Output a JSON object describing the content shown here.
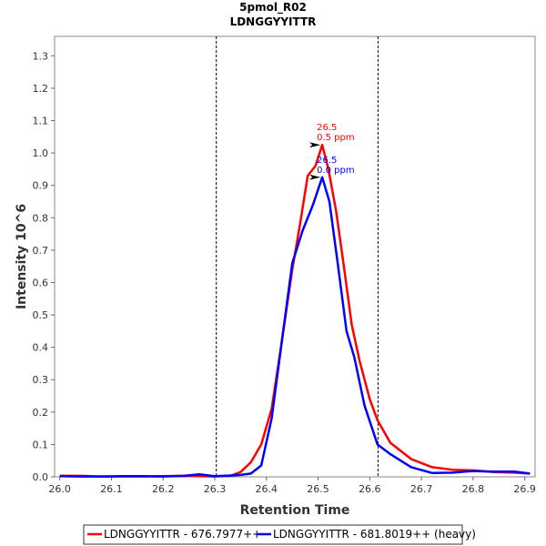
{
  "chart_data": {
    "type": "line",
    "title": "5pmol_R02",
    "subtitle": "LDNGGYYITTR",
    "xlabel": "Retention Time",
    "ylabel": "Intensity 10^6",
    "xlim": [
      25.99,
      26.92
    ],
    "ylim": [
      0,
      1.36
    ],
    "x_ticks": [
      "26.0",
      "26.1",
      "26.2",
      "26.3",
      "26.4",
      "26.5",
      "26.6",
      "26.7",
      "26.8",
      "26.9"
    ],
    "y_ticks": [
      "0.0",
      "0.1",
      "0.2",
      "0.3",
      "0.4",
      "0.5",
      "0.6",
      "0.7",
      "0.8",
      "0.9",
      "1.0",
      "1.1",
      "1.2",
      "1.3"
    ],
    "grid": false,
    "legend_position": "bottom",
    "boundaries": [
      26.303,
      26.616
    ],
    "series": [
      {
        "name": "LDNGGYYITTR - 676.7977++",
        "color": "#ff0000",
        "x": [
          26.0,
          26.04,
          26.08,
          26.12,
          26.16,
          26.2,
          26.24,
          26.27,
          26.3,
          26.33,
          26.35,
          26.37,
          26.39,
          26.41,
          26.43,
          26.45,
          26.465,
          26.48,
          26.495,
          26.508,
          26.52,
          26.535,
          26.55,
          26.565,
          26.58,
          26.6,
          26.615,
          26.64,
          26.68,
          26.72,
          26.76,
          26.8,
          26.84,
          26.88,
          26.91
        ],
        "y": [
          0.003,
          0.003,
          0.001,
          0.001,
          0.001,
          0.002,
          0.003,
          0.002,
          0.001,
          0.003,
          0.015,
          0.045,
          0.1,
          0.21,
          0.42,
          0.64,
          0.78,
          0.93,
          0.96,
          1.025,
          0.95,
          0.82,
          0.65,
          0.47,
          0.36,
          0.24,
          0.175,
          0.105,
          0.055,
          0.03,
          0.022,
          0.02,
          0.015,
          0.013,
          0.01
        ]
      },
      {
        "name": "LDNGGYYITTR - 681.8019++ (heavy)",
        "color": "#0000ff",
        "x": [
          26.0,
          26.04,
          26.08,
          26.12,
          26.16,
          26.2,
          26.24,
          26.27,
          26.3,
          26.33,
          26.35,
          26.37,
          26.39,
          26.41,
          26.43,
          26.45,
          26.47,
          26.49,
          26.508,
          26.522,
          26.538,
          26.555,
          26.57,
          26.59,
          26.615,
          26.64,
          26.68,
          26.72,
          26.76,
          26.8,
          26.84,
          26.88,
          26.91
        ],
        "y": [
          0.002,
          0.001,
          0.001,
          0.002,
          0.002,
          0.001,
          0.003,
          0.008,
          0.002,
          0.004,
          0.006,
          0.01,
          0.035,
          0.18,
          0.42,
          0.66,
          0.76,
          0.84,
          0.925,
          0.85,
          0.66,
          0.45,
          0.37,
          0.22,
          0.1,
          0.07,
          0.03,
          0.012,
          0.013,
          0.018,
          0.016,
          0.016,
          0.01
        ]
      }
    ],
    "annotations": [
      {
        "x": 26.508,
        "y": 1.025,
        "lines": [
          "26.5",
          "0.5 ppm"
        ],
        "color": "#ff0000"
      },
      {
        "x": 26.508,
        "y": 0.925,
        "lines": [
          "26.5",
          "0.0 ppm"
        ],
        "color": "#0000ff"
      }
    ]
  }
}
